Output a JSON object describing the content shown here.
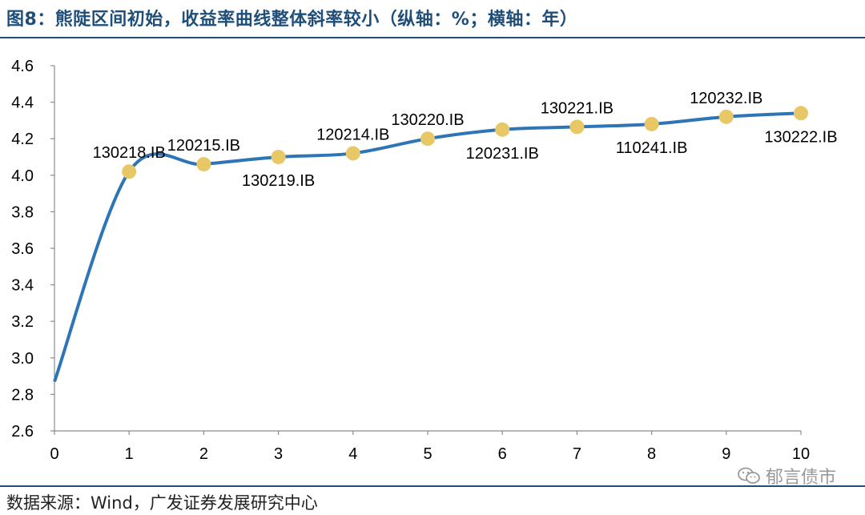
{
  "header": {
    "title": "图8：熊陡区间初始，收益率曲线整体斜率较小（纵轴：%；横轴：年）"
  },
  "footer": {
    "source": "数据来源：Wind，广发证券发展研究中心",
    "watermark": "郁言债市",
    "watermark_icon": "wechat-icon"
  },
  "chart_data": {
    "type": "line",
    "x": [
      0,
      1,
      2,
      3,
      4,
      5,
      6,
      7,
      8,
      9,
      10
    ],
    "series": [
      {
        "values": [
          2.87,
          4.02,
          4.06,
          4.1,
          4.12,
          4.2,
          4.25,
          4.265,
          4.28,
          4.32,
          4.34
        ],
        "color": "#2e75b6",
        "marker_color": "#e8c766"
      }
    ],
    "points": [
      {
        "x": 1,
        "y": 4.02,
        "label": "130218.IB",
        "label_pos": "above"
      },
      {
        "x": 2,
        "y": 4.06,
        "label": "120215.IB",
        "label_pos": "above"
      },
      {
        "x": 3,
        "y": 4.1,
        "label": "130219.IB",
        "label_pos": "below"
      },
      {
        "x": 4,
        "y": 4.12,
        "label": "120214.IB",
        "label_pos": "above"
      },
      {
        "x": 5,
        "y": 4.2,
        "label": "130220.IB",
        "label_pos": "above"
      },
      {
        "x": 6,
        "y": 4.25,
        "label": "120231.IB",
        "label_pos": "below"
      },
      {
        "x": 7,
        "y": 4.265,
        "label": "130221.IB",
        "label_pos": "above"
      },
      {
        "x": 8,
        "y": 4.28,
        "label": "110241.IB",
        "label_pos": "below"
      },
      {
        "x": 9,
        "y": 4.32,
        "label": "120232.IB",
        "label_pos": "above"
      },
      {
        "x": 10,
        "y": 4.34,
        "label": "130222.IB",
        "label_pos": "below"
      }
    ],
    "xlim": [
      0,
      10
    ],
    "ylim": [
      2.6,
      4.6
    ],
    "xticks": [
      "0",
      "1",
      "2",
      "3",
      "4",
      "5",
      "6",
      "7",
      "8",
      "9",
      "10"
    ],
    "yticks": [
      "2.6",
      "2.8",
      "3.0",
      "3.2",
      "3.4",
      "3.6",
      "3.8",
      "4.0",
      "4.2",
      "4.4",
      "4.6"
    ],
    "grid": false,
    "smooth": true
  }
}
